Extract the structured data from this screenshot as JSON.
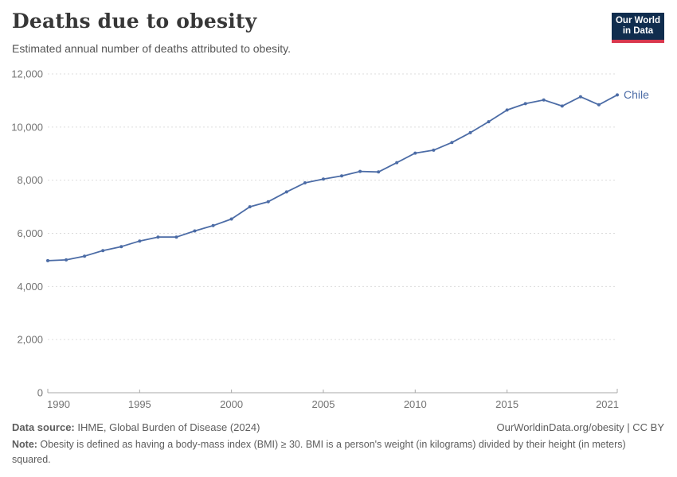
{
  "header": {
    "title": "Deaths due to obesity",
    "subtitle": "Estimated annual number of deaths attributed to obesity.",
    "logo": {
      "line1": "Our World",
      "line2": "in Data",
      "bg_color": "#102d4e",
      "accent_color": "#d9374d"
    }
  },
  "chart_data": {
    "type": "line",
    "title": "Deaths due to obesity",
    "xlabel": "",
    "ylabel": "",
    "x": [
      1990,
      1991,
      1992,
      1993,
      1994,
      1995,
      1996,
      1997,
      1998,
      1999,
      2000,
      2001,
      2002,
      2003,
      2004,
      2005,
      2006,
      2007,
      2008,
      2009,
      2010,
      2011,
      2012,
      2013,
      2014,
      2015,
      2016,
      2017,
      2018,
      2019,
      2020,
      2021
    ],
    "series": [
      {
        "name": "Chile",
        "color": "#4c6ca6",
        "values": [
          4970,
          5000,
          5140,
          5350,
          5500,
          5710,
          5860,
          5860,
          6090,
          6290,
          6540,
          7000,
          7190,
          7560,
          7900,
          8040,
          8160,
          8330,
          8310,
          8660,
          9020,
          9130,
          9420,
          9790,
          10200,
          10640,
          10880,
          11020,
          10790,
          11140,
          10840,
          11210
        ]
      }
    ],
    "ylim": [
      0,
      12000
    ],
    "yticks": [
      0,
      2000,
      4000,
      6000,
      8000,
      10000,
      12000
    ],
    "xticks": [
      1990,
      1995,
      2000,
      2005,
      2010,
      2015,
      2021
    ],
    "grid": "horizontal-dashed",
    "legend_position": "end-of-line",
    "end_label": "Chile",
    "colors": {
      "gridline": "#dcdcdc",
      "axis": "#a8a8a8",
      "tick_label": "#737373"
    }
  },
  "footer": {
    "source_label": "Data source:",
    "source_text": " IHME, Global Burden of Disease (2024)",
    "link": "OurWorldinData.org/obesity | CC BY",
    "note_label": "Note:",
    "note_text": " Obesity is defined as having a body-mass index (BMI) ≥ 30. BMI is a person's weight (in kilograms) divided by their height (in meters) squared."
  }
}
